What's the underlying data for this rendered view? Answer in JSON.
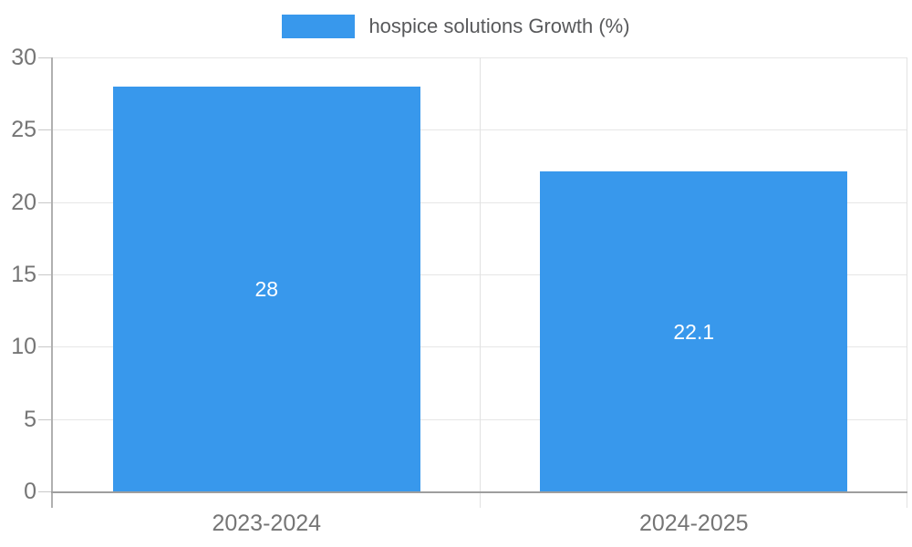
{
  "chart_data": {
    "type": "bar",
    "title": "",
    "categories": [
      "2023-2024",
      "2024-2025"
    ],
    "series": [
      {
        "name": "hospice solutions Growth (%)",
        "values": [
          28,
          22.1
        ],
        "value_labels": [
          "28",
          "22.1"
        ],
        "color": "#3898ec"
      }
    ],
    "xlabel": "",
    "ylabel": "",
    "ylim": [
      0,
      30
    ],
    "yticks": [
      0,
      5,
      10,
      15,
      20,
      25,
      30
    ],
    "grid": true,
    "legend_position": "top",
    "bar_label_color": "#ffffff"
  },
  "colors": {
    "bar": "#3898ec",
    "grid_line": "#e6e6e6",
    "axis_line": "#9e9e9e",
    "tick_text": "#757575",
    "legend_text": "#58595b",
    "background": "#ffffff"
  }
}
